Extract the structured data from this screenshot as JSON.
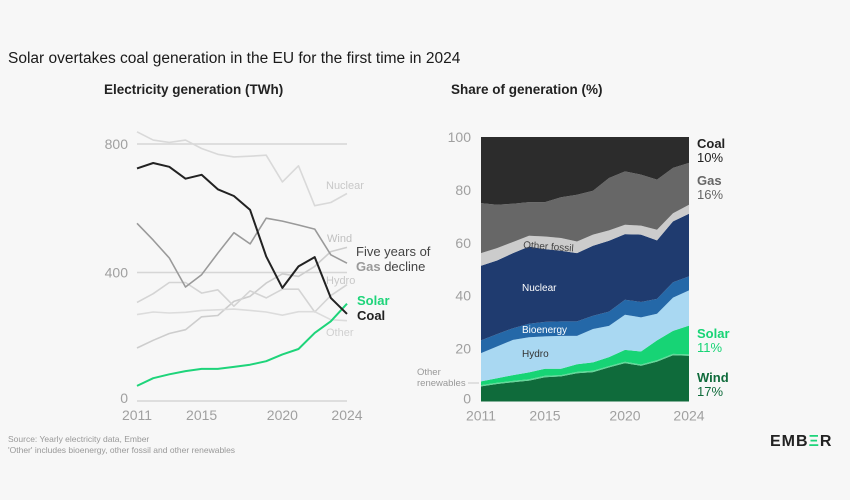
{
  "title": "Solar overtakes coal generation in the EU for the first time in 2024",
  "footer": {
    "source": "Source: Yearly electricity data, Ember",
    "note": "'Other' includes bioenergy, other fossil and other renewables",
    "logo": "EMBER"
  },
  "chart_data": [
    {
      "type": "line",
      "title": "Electricity generation (TWh)",
      "x": [
        2011,
        2012,
        2013,
        2014,
        2015,
        2016,
        2017,
        2018,
        2019,
        2020,
        2021,
        2022,
        2023,
        2024
      ],
      "x_ticks": [
        "2011",
        "2015",
        "2020",
        "2024"
      ],
      "y_ticks": [
        "0",
        "400",
        "800"
      ],
      "ylim": [
        0,
        800
      ],
      "grid": true,
      "annotation": {
        "line1": "Five years of",
        "bold": "Gas",
        "rest": " decline"
      },
      "series": [
        {
          "name": "Nuclear",
          "color": "#d9d9d9",
          "values": [
            838,
            812,
            805,
            812,
            786,
            768,
            760,
            762,
            765,
            682,
            732,
            608,
            618,
            646
          ]
        },
        {
          "name": "Wind",
          "color": "#cdcdcd",
          "values": [
            165,
            189,
            210,
            222,
            262,
            266,
            310,
            326,
            367,
            396,
            388,
            419,
            465,
            478
          ]
        },
        {
          "name": "Hydro",
          "color": "#d4d4d4",
          "values": [
            307,
            334,
            369,
            369,
            336,
            346,
            295,
            343,
            321,
            348,
            348,
            277,
            328,
            362
          ]
        },
        {
          "name": "Other",
          "color": "#dcdcdc",
          "values": [
            269,
            277,
            274,
            276,
            282,
            284,
            286,
            282,
            277,
            267,
            278,
            278,
            253,
            250
          ]
        },
        {
          "name": "Gas",
          "color": "#9a9a9a",
          "values": [
            553,
            501,
            445,
            355,
            393,
            460,
            524,
            489,
            569,
            560,
            548,
            535,
            455,
            429
          ]
        },
        {
          "name": "Solar",
          "color": "#1ed47a",
          "values": [
            47,
            71,
            83,
            93,
            100,
            100,
            106,
            113,
            124,
            145,
            162,
            212,
            248,
            303
          ]
        },
        {
          "name": "Coal",
          "color": "#222222",
          "values": [
            724,
            741,
            729,
            692,
            704,
            659,
            638,
            595,
            450,
            352,
            419,
            448,
            321,
            271
          ]
        }
      ]
    },
    {
      "type": "area",
      "stacked": true,
      "title": "Share of generation (%)",
      "x": [
        2011,
        2012,
        2013,
        2014,
        2015,
        2016,
        2017,
        2018,
        2019,
        2020,
        2021,
        2022,
        2023,
        2024
      ],
      "x_ticks": [
        "2011",
        "2015",
        "2020",
        "2024"
      ],
      "y_ticks": [
        "0",
        "20",
        "40",
        "60",
        "80",
        "100"
      ],
      "ylim": [
        0,
        100
      ],
      "series": [
        {
          "name": "Wind",
          "color": "#0f6b3b",
          "label": "Wind",
          "value_label": "17%",
          "values": [
            5.7,
            6.6,
            7.3,
            7.9,
            9.2,
            9.5,
            10.7,
            11.1,
            12.9,
            14.5,
            13.5,
            15.1,
            17.5,
            17.3
          ]
        },
        {
          "name": "Other renewables",
          "color": "#5fd998",
          "values": [
            0.5,
            0.5,
            0.5,
            0.5,
            0.5,
            0.5,
            0.5,
            0.5,
            0.5,
            0.5,
            0.5,
            0.5,
            0.5,
            0.5
          ]
        },
        {
          "name": "Solar",
          "color": "#17d475",
          "label": "Solar",
          "value_label": "11%",
          "values": [
            1.4,
            1.7,
            2.2,
            2.6,
            2.7,
            2.4,
            2.9,
            3.2,
            3.4,
            4.5,
            4.9,
            7.5,
            8.7,
            10.9
          ]
        },
        {
          "name": "Hydro",
          "color": "#a9d8f2",
          "values": [
            10.7,
            12.0,
            13.3,
            13.3,
            12.2,
            12.4,
            10.7,
            12.6,
            11.8,
            13.3,
            12.9,
            10.1,
            12.6,
            13.3
          ]
        },
        {
          "name": "Bioenergy",
          "color": "#2468a8",
          "values": [
            4.8,
            4.7,
            4.4,
            5.1,
            5.5,
            5.5,
            5.5,
            5.0,
            5.4,
            5.7,
            5.8,
            5.6,
            5.8,
            5.3
          ]
        },
        {
          "name": "Nuclear",
          "color": "#1f3b6f",
          "values": [
            28.2,
            27.8,
            28.4,
            29.2,
            27.5,
            26.7,
            25.8,
            26.5,
            26.8,
            24.8,
            25.5,
            22.1,
            23.0,
            23.7
          ]
        },
        {
          "name": "Other fossil",
          "color": "#cccccc",
          "values": [
            4.8,
            4.7,
            4.2,
            4.1,
            4.8,
            4.8,
            4.4,
            4.2,
            3.9,
            3.5,
            3.4,
            4.0,
            3.1,
            3.4
          ]
        },
        {
          "name": "Gas",
          "color": "#676767",
          "label": "Gas",
          "value_label": "16%",
          "values": [
            18.9,
            16.4,
            14.5,
            12.7,
            13.0,
            15.4,
            17.7,
            16.6,
            19.8,
            20.2,
            19.3,
            19.0,
            17.1,
            15.8
          ]
        },
        {
          "name": "Coal",
          "color": "#2c2c2c",
          "label": "Coal",
          "value_label": "10%",
          "values": [
            25.0,
            25.6,
            25.2,
            24.6,
            24.6,
            22.8,
            21.8,
            20.3,
            15.5,
            13.0,
            14.2,
            16.1,
            11.7,
            9.8
          ]
        }
      ],
      "inline_labels": {
        "other_fossil": "Other fossil",
        "nuclear": "Nuclear",
        "bioenergy": "Bioenergy",
        "hydro": "Hydro",
        "other_renewables_1": "Other",
        "other_renewables_2": "renewables"
      }
    }
  ]
}
